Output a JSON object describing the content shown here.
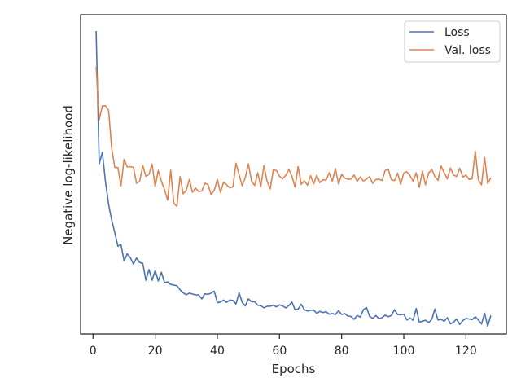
{
  "chart_data": {
    "type": "line",
    "xlabel": "Epochs",
    "ylabel": "Negative log-likelihood",
    "xlim": [
      -4,
      133
    ],
    "ylim": [
      0.0,
      1.0
    ],
    "xticks": [
      0,
      20,
      40,
      60,
      80,
      100,
      120
    ],
    "show_y_tick_labels": false,
    "grid": false,
    "legend_position": "top-right",
    "x": [
      1,
      2,
      3,
      4,
      5,
      6,
      7,
      8,
      9,
      10,
      11,
      12,
      13,
      14,
      15,
      16,
      17,
      18,
      19,
      20,
      21,
      22,
      23,
      24,
      25,
      26,
      27,
      28,
      29,
      30,
      31,
      32,
      33,
      34,
      35,
      36,
      37,
      38,
      39,
      40,
      41,
      42,
      43,
      44,
      45,
      46,
      47,
      48,
      49,
      50,
      51,
      52,
      53,
      54,
      55,
      56,
      57,
      58,
      59,
      60,
      61,
      62,
      63,
      64,
      65,
      66,
      67,
      68,
      69,
      70,
      71,
      72,
      73,
      74,
      75,
      76,
      77,
      78,
      79,
      80,
      81,
      82,
      83,
      84,
      85,
      86,
      87,
      88,
      89,
      90,
      91,
      92,
      93,
      94,
      95,
      96,
      97,
      98,
      99,
      100,
      101,
      102,
      103,
      104,
      105,
      106,
      107,
      108,
      109,
      110,
      111,
      112,
      113,
      114,
      115,
      116,
      117,
      118,
      119,
      120,
      121,
      122,
      123,
      124,
      125,
      126,
      127,
      128
    ],
    "series": [
      {
        "name": "Loss",
        "color": "#4c72b0",
        "values": [
          0.949,
          0.533,
          0.569,
          0.478,
          0.406,
          0.357,
          0.317,
          0.275,
          0.28,
          0.229,
          0.251,
          0.239,
          0.219,
          0.238,
          0.224,
          0.221,
          0.168,
          0.202,
          0.168,
          0.199,
          0.166,
          0.193,
          0.161,
          0.163,
          0.155,
          0.153,
          0.151,
          0.138,
          0.129,
          0.123,
          0.128,
          0.125,
          0.123,
          0.122,
          0.11,
          0.126,
          0.124,
          0.128,
          0.134,
          0.098,
          0.1,
          0.106,
          0.099,
          0.106,
          0.105,
          0.094,
          0.129,
          0.099,
          0.088,
          0.11,
          0.101,
          0.101,
          0.09,
          0.089,
          0.082,
          0.087,
          0.087,
          0.09,
          0.085,
          0.091,
          0.088,
          0.082,
          0.089,
          0.1,
          0.076,
          0.078,
          0.093,
          0.076,
          0.072,
          0.074,
          0.075,
          0.064,
          0.071,
          0.067,
          0.07,
          0.062,
          0.064,
          0.061,
          0.073,
          0.061,
          0.064,
          0.056,
          0.055,
          0.046,
          0.058,
          0.053,
          0.076,
          0.083,
          0.055,
          0.049,
          0.058,
          0.048,
          0.051,
          0.059,
          0.054,
          0.058,
          0.076,
          0.061,
          0.06,
          0.062,
          0.044,
          0.05,
          0.043,
          0.08,
          0.037,
          0.04,
          0.043,
          0.036,
          0.046,
          0.078,
          0.044,
          0.046,
          0.04,
          0.051,
          0.032,
          0.037,
          0.047,
          0.03,
          0.042,
          0.049,
          0.047,
          0.045,
          0.054,
          0.044,
          0.031,
          0.065,
          0.024,
          0.058
        ]
      },
      {
        "name": "Val. loss",
        "color": "#dd8452",
        "values": [
          0.837,
          0.671,
          0.714,
          0.715,
          0.7,
          0.581,
          0.522,
          0.521,
          0.464,
          0.547,
          0.523,
          0.524,
          0.522,
          0.472,
          0.478,
          0.527,
          0.494,
          0.5,
          0.532,
          0.462,
          0.512,
          0.478,
          0.452,
          0.419,
          0.513,
          0.409,
          0.4,
          0.493,
          0.439,
          0.45,
          0.484,
          0.444,
          0.457,
          0.446,
          0.448,
          0.472,
          0.468,
          0.437,
          0.45,
          0.484,
          0.443,
          0.475,
          0.467,
          0.458,
          0.461,
          0.535,
          0.499,
          0.464,
          0.49,
          0.533,
          0.478,
          0.465,
          0.505,
          0.462,
          0.527,
          0.478,
          0.454,
          0.514,
          0.512,
          0.494,
          0.486,
          0.497,
          0.515,
          0.494,
          0.46,
          0.524,
          0.469,
          0.479,
          0.466,
          0.496,
          0.47,
          0.497,
          0.474,
          0.483,
          0.482,
          0.505,
          0.478,
          0.518,
          0.47,
          0.5,
          0.488,
          0.485,
          0.485,
          0.498,
          0.478,
          0.492,
          0.479,
          0.485,
          0.493,
          0.472,
          0.484,
          0.485,
          0.48,
          0.512,
          0.516,
          0.483,
          0.48,
          0.504,
          0.469,
          0.504,
          0.508,
          0.496,
          0.478,
          0.505,
          0.459,
          0.51,
          0.467,
          0.504,
          0.516,
          0.493,
          0.481,
          0.526,
          0.505,
          0.486,
          0.52,
          0.498,
          0.493,
          0.519,
          0.491,
          0.498,
          0.484,
          0.486,
          0.573,
          0.483,
          0.467,
          0.553,
          0.471,
          0.489
        ]
      }
    ]
  }
}
